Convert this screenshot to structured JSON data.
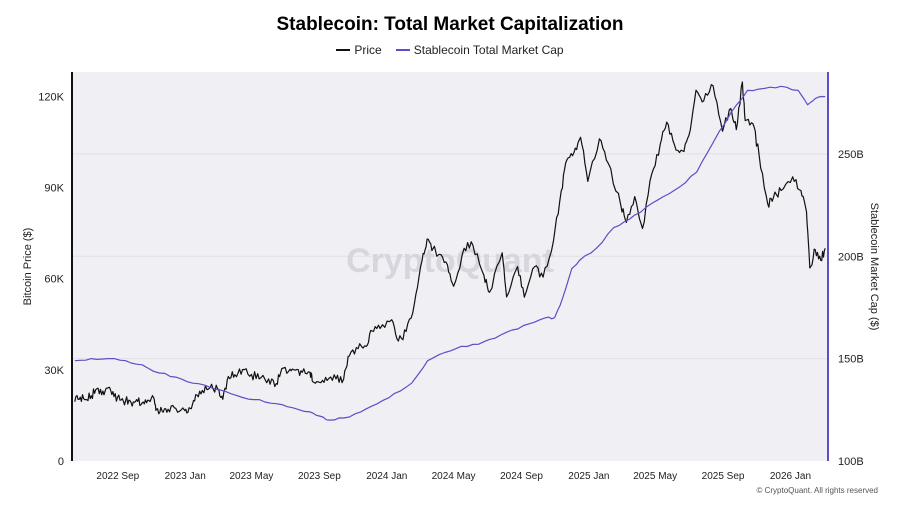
{
  "colors": {
    "price": "#111111",
    "stablecoin": "#5b4fc7",
    "plot_bg": "#f0f0f4",
    "grid": "#e0e0e6"
  },
  "copyright": "© CryptoQuant. All rights reserved",
  "watermark": "CryptoQuant",
  "chart_data": {
    "type": "line",
    "title": "Stablecoin: Total Market Capitalization",
    "legend_position": "top-center",
    "grid": true,
    "x_axis": {
      "type": "date",
      "range": [
        "2022-06-10",
        "2026-03-10"
      ],
      "tick_labels": [
        "2022 Sep",
        "2023 Jan",
        "2023 May",
        "2023 Sep",
        "2024 Jan",
        "2024 May",
        "2024 Sep",
        "2025 Jan",
        "2025 May",
        "2025 Sep",
        "2026 Jan"
      ],
      "tick_dates": [
        "2022-09-01",
        "2023-01-01",
        "2023-05-01",
        "2023-09-01",
        "2024-01-01",
        "2024-05-01",
        "2024-09-01",
        "2025-01-01",
        "2025-05-01",
        "2025-09-01",
        "2026-01-01"
      ]
    },
    "y_left": {
      "label": "Bitcoin Price ($)",
      "range": [
        0,
        128000
      ],
      "ticks": [
        0,
        30000,
        60000,
        90000,
        120000
      ],
      "tick_labels": [
        "0",
        "30K",
        "60K",
        "90K",
        "120K"
      ]
    },
    "y_right": {
      "label": "Stablecoin Market Cap ($)",
      "range": [
        100,
        290
      ],
      "ticks": [
        100,
        150,
        200,
        250
      ],
      "tick_labels": [
        "100B",
        "150B",
        "200B",
        "250B"
      ]
    },
    "series": [
      {
        "name": "Price",
        "axis": "left",
        "color": "#111111",
        "points": [
          [
            "2022-06-15",
            19500
          ],
          [
            "2022-06-25",
            21000
          ],
          [
            "2022-07-05",
            20200
          ],
          [
            "2022-07-15",
            21500
          ],
          [
            "2022-07-25",
            23800
          ],
          [
            "2022-08-05",
            23000
          ],
          [
            "2022-08-15",
            24200
          ],
          [
            "2022-08-25",
            21200
          ],
          [
            "2022-09-05",
            20000
          ],
          [
            "2022-09-15",
            19800
          ],
          [
            "2022-09-25",
            19200
          ],
          [
            "2022-10-05",
            20200
          ],
          [
            "2022-10-15",
            19100
          ],
          [
            "2022-10-25",
            20000
          ],
          [
            "2022-11-05",
            20800
          ],
          [
            "2022-11-10",
            17000
          ],
          [
            "2022-11-20",
            16500
          ],
          [
            "2022-12-01",
            17000
          ],
          [
            "2022-12-15",
            17300
          ],
          [
            "2022-12-31",
            16600
          ],
          [
            "2023-01-10",
            17300
          ],
          [
            "2023-01-20",
            21800
          ],
          [
            "2023-02-01",
            23200
          ],
          [
            "2023-02-15",
            24200
          ],
          [
            "2023-03-01",
            23600
          ],
          [
            "2023-03-10",
            20300
          ],
          [
            "2023-03-20",
            27800
          ],
          [
            "2023-04-01",
            28400
          ],
          [
            "2023-04-15",
            30100
          ],
          [
            "2023-05-01",
            28500
          ],
          [
            "2023-05-15",
            27000
          ],
          [
            "2023-06-01",
            27000
          ],
          [
            "2023-06-15",
            25500
          ],
          [
            "2023-06-25",
            30400
          ],
          [
            "2023-07-10",
            30200
          ],
          [
            "2023-07-20",
            29900
          ],
          [
            "2023-08-01",
            29200
          ],
          [
            "2023-08-15",
            29200
          ],
          [
            "2023-08-20",
            26100
          ],
          [
            "2023-09-01",
            25900
          ],
          [
            "2023-09-15",
            26500
          ],
          [
            "2023-10-01",
            27000
          ],
          [
            "2023-10-15",
            27000
          ],
          [
            "2023-10-25",
            34500
          ],
          [
            "2023-11-10",
            37000
          ],
          [
            "2023-11-25",
            37700
          ],
          [
            "2023-12-05",
            42800
          ],
          [
            "2023-12-20",
            43600
          ],
          [
            "2024-01-10",
            46500
          ],
          [
            "2024-01-22",
            39500
          ],
          [
            "2024-02-05",
            42600
          ],
          [
            "2024-02-20",
            51800
          ],
          [
            "2024-03-05",
            66000
          ],
          [
            "2024-03-14",
            73000
          ],
          [
            "2024-03-25",
            70000
          ],
          [
            "2024-04-05",
            68000
          ],
          [
            "2024-04-20",
            64500
          ],
          [
            "2024-05-01",
            57500
          ],
          [
            "2024-05-20",
            70000
          ],
          [
            "2024-06-05",
            71000
          ],
          [
            "2024-06-25",
            61000
          ],
          [
            "2024-07-05",
            55500
          ],
          [
            "2024-07-28",
            68500
          ],
          [
            "2024-08-05",
            54000
          ],
          [
            "2024-08-25",
            64000
          ],
          [
            "2024-09-06",
            53900
          ],
          [
            "2024-09-25",
            64000
          ],
          [
            "2024-10-10",
            60500
          ],
          [
            "2024-10-29",
            72500
          ],
          [
            "2024-11-12",
            89000
          ],
          [
            "2024-11-22",
            99000
          ],
          [
            "2024-12-05",
            101500
          ],
          [
            "2024-12-17",
            106500
          ],
          [
            "2024-12-30",
            92000
          ],
          [
            "2025-01-20",
            106000
          ],
          [
            "2025-02-05",
            98000
          ],
          [
            "2025-02-28",
            84000
          ],
          [
            "2025-03-10",
            78500
          ],
          [
            "2025-03-25",
            87000
          ],
          [
            "2025-04-08",
            76500
          ],
          [
            "2025-04-25",
            94500
          ],
          [
            "2025-05-10",
            104000
          ],
          [
            "2025-05-22",
            111500
          ],
          [
            "2025-06-05",
            104000
          ],
          [
            "2025-06-20",
            102000
          ],
          [
            "2025-07-01",
            107000
          ],
          [
            "2025-07-14",
            122000
          ],
          [
            "2025-07-28",
            118500
          ],
          [
            "2025-08-14",
            123500
          ],
          [
            "2025-08-31",
            108500
          ],
          [
            "2025-09-15",
            116000
          ],
          [
            "2025-09-25",
            109000
          ],
          [
            "2025-10-06",
            124700
          ],
          [
            "2025-10-11",
            112000
          ],
          [
            "2025-10-25",
            111000
          ],
          [
            "2025-11-05",
            101000
          ],
          [
            "2025-11-21",
            84500
          ],
          [
            "2025-12-01",
            86500
          ],
          [
            "2025-12-15",
            89000
          ],
          [
            "2026-01-05",
            93500
          ],
          [
            "2026-01-20",
            89000
          ],
          [
            "2026-01-30",
            82000
          ],
          [
            "2026-02-05",
            63500
          ],
          [
            "2026-02-15",
            69500
          ],
          [
            "2026-02-25",
            66000
          ],
          [
            "2026-03-05",
            70000
          ]
        ]
      },
      {
        "name": "Stablecoin Total Market Cap",
        "axis": "right",
        "color": "#5b4fc7",
        "points": [
          [
            "2022-06-15",
            149
          ],
          [
            "2022-07-15",
            150
          ],
          [
            "2022-08-15",
            150
          ],
          [
            "2022-09-15",
            149
          ],
          [
            "2022-10-15",
            147
          ],
          [
            "2022-11-15",
            143
          ],
          [
            "2022-12-15",
            141
          ],
          [
            "2023-01-15",
            138
          ],
          [
            "2023-02-15",
            136
          ],
          [
            "2023-03-15",
            134
          ],
          [
            "2023-04-15",
            131
          ],
          [
            "2023-05-15",
            130
          ],
          [
            "2023-06-15",
            128
          ],
          [
            "2023-07-15",
            126
          ],
          [
            "2023-08-15",
            124
          ],
          [
            "2023-09-01",
            122
          ],
          [
            "2023-09-20",
            120
          ],
          [
            "2023-10-15",
            121
          ],
          [
            "2023-11-15",
            124
          ],
          [
            "2023-12-15",
            128
          ],
          [
            "2024-01-15",
            133
          ],
          [
            "2024-02-15",
            138
          ],
          [
            "2024-03-15",
            149
          ],
          [
            "2024-04-15",
            153
          ],
          [
            "2024-05-15",
            156
          ],
          [
            "2024-06-15",
            157
          ],
          [
            "2024-07-15",
            160
          ],
          [
            "2024-08-15",
            164
          ],
          [
            "2024-09-15",
            167
          ],
          [
            "2024-10-15",
            170
          ],
          [
            "2024-10-31",
            170
          ],
          [
            "2024-11-15",
            180
          ],
          [
            "2024-12-01",
            194
          ],
          [
            "2024-12-15",
            198
          ],
          [
            "2025-01-15",
            204
          ],
          [
            "2025-02-15",
            214
          ],
          [
            "2025-03-15",
            218
          ],
          [
            "2025-04-15",
            224
          ],
          [
            "2025-05-15",
            229
          ],
          [
            "2025-06-15",
            234
          ],
          [
            "2025-07-15",
            241
          ],
          [
            "2025-08-15",
            256
          ],
          [
            "2025-09-15",
            270
          ],
          [
            "2025-10-15",
            281
          ],
          [
            "2025-11-15",
            282
          ],
          [
            "2025-12-15",
            283
          ],
          [
            "2026-01-15",
            281
          ],
          [
            "2026-02-01",
            274
          ],
          [
            "2026-02-15",
            277
          ],
          [
            "2026-03-05",
            278
          ]
        ]
      }
    ]
  }
}
